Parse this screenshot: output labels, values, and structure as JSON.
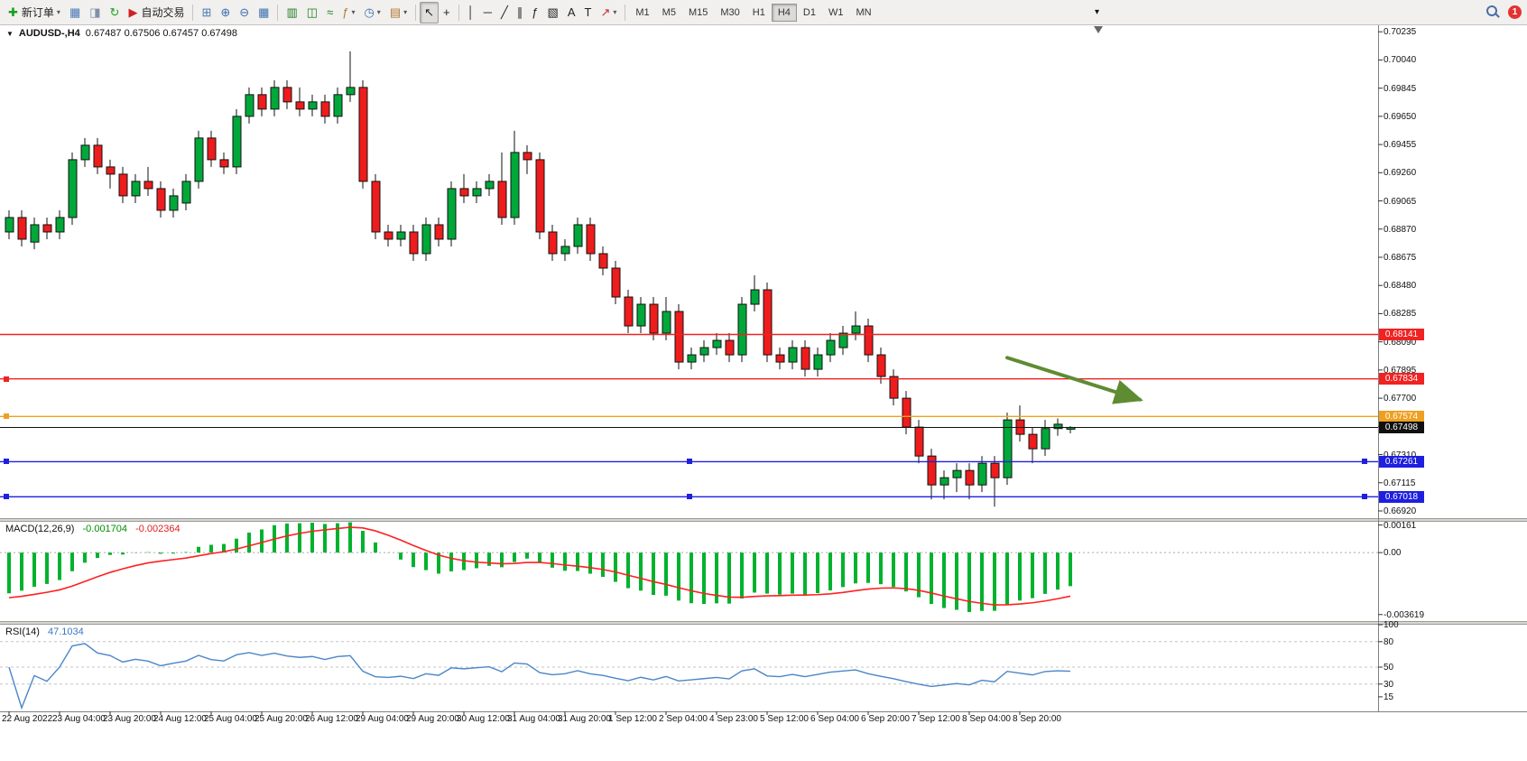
{
  "toolbar": {
    "items": [
      {
        "type": "button",
        "name": "new-order-button",
        "icon": "new-order-icon",
        "glyph": "✚",
        "color": "#16A016",
        "label": "新订单",
        "caret": true
      },
      {
        "type": "button",
        "name": "charts-button",
        "icon": "bar-chart-window-icon",
        "glyph": "▦",
        "color": "#4A78B8"
      },
      {
        "type": "button",
        "name": "profiles-button",
        "icon": "profiles-icon",
        "glyph": "◨",
        "color": "#8090A8"
      },
      {
        "type": "button",
        "name": "refresh-button",
        "icon": "refresh-icon",
        "glyph": "↻",
        "color": "#22A022"
      },
      {
        "type": "button",
        "name": "autotrading-button",
        "icon": "autotrading-icon",
        "glyph": "▶",
        "color": "#CC2222",
        "label": "自动交易"
      },
      {
        "type": "sep"
      },
      {
        "type": "button",
        "name": "new-chart-button",
        "icon": "new-chart-icon",
        "glyph": "⊞",
        "color": "#4A78B8"
      },
      {
        "type": "button",
        "name": "zoom-in-button",
        "icon": "zoom-in-icon",
        "glyph": "⊕",
        "color": "#3A6FB0"
      },
      {
        "type": "button",
        "name": "zoom-out-button",
        "icon": "zoom-out-icon",
        "glyph": "⊖",
        "color": "#3A6FB0"
      },
      {
        "type": "button",
        "name": "data-window-button",
        "icon": "data-window-icon",
        "glyph": "▦",
        "color": "#3A6FB0"
      },
      {
        "type": "sep"
      },
      {
        "type": "button",
        "name": "bar-chart-button",
        "icon": "bar-chart-icon",
        "glyph": "▥",
        "color": "#208020"
      },
      {
        "type": "button",
        "name": "candlestick-chart-button",
        "icon": "candlestick-chart-icon",
        "glyph": "◫",
        "color": "#208020"
      },
      {
        "type": "button",
        "name": "line-chart-button",
        "icon": "line-chart-icon",
        "glyph": "≈",
        "color": "#208020"
      },
      {
        "type": "button",
        "name": "indicators-button",
        "icon": "indicators-icon",
        "glyph": "ƒ",
        "color": "#B07838",
        "caret": true
      },
      {
        "type": "button",
        "name": "periods-button",
        "icon": "periods-icon",
        "glyph": "◷",
        "color": "#3A6FB0",
        "caret": true
      },
      {
        "type": "button",
        "name": "templates-button",
        "icon": "templates-icon",
        "glyph": "▤",
        "color": "#B07838",
        "caret": true
      },
      {
        "type": "sep"
      },
      {
        "type": "button",
        "name": "cursor-button",
        "icon": "cursor-icon",
        "glyph": "↖",
        "color": "#222222",
        "pressed": true
      },
      {
        "type": "button",
        "name": "crosshair-button",
        "icon": "crosshair-icon",
        "glyph": "+",
        "color": "#222222"
      },
      {
        "type": "sep"
      },
      {
        "type": "button",
        "name": "vertical-line-button",
        "icon": "vertical-line-icon",
        "glyph": "│",
        "color": "#222222"
      },
      {
        "type": "button",
        "name": "horizontal-line-button",
        "icon": "horizontal-line-icon",
        "glyph": "─",
        "color": "#222222"
      },
      {
        "type": "button",
        "name": "trendline-button",
        "icon": "trendline-icon",
        "glyph": "╱",
        "color": "#222222"
      },
      {
        "type": "button",
        "name": "channel-button",
        "icon": "channel-icon",
        "glyph": "∥",
        "color": "#222222"
      },
      {
        "type": "button",
        "name": "fibonacci-button",
        "icon": "fibonacci-icon",
        "glyph": "ƒ",
        "color": "#222222"
      },
      {
        "type": "button",
        "name": "shapes-button",
        "icon": "shapes-icon",
        "glyph": "▧",
        "color": "#222222"
      },
      {
        "type": "button",
        "name": "text-button",
        "icon": "text-icon",
        "glyph": "A",
        "color": "#222222"
      },
      {
        "type": "button",
        "name": "text-label-button",
        "icon": "text-label-icon",
        "glyph": "T",
        "color": "#222222"
      },
      {
        "type": "button",
        "name": "arrows-button",
        "icon": "arrow-object-icon",
        "glyph": "↗",
        "color": "#C03030",
        "caret": true
      },
      {
        "type": "sep"
      },
      {
        "type": "tf-group"
      }
    ],
    "timeframes": [
      "M1",
      "M5",
      "M15",
      "M30",
      "H1",
      "H4",
      "D1",
      "W1",
      "MN"
    ],
    "active_timeframe": "H4",
    "overflow_glyph": "▾",
    "right": {
      "notification_count": "1"
    }
  },
  "chart_data": {
    "type": "candlestick",
    "symbol_label": "AUDUSD-,H4",
    "ohlc_label": "0.67487 0.67506 0.67457 0.67498",
    "one_click_glyph": "▼",
    "bull_color": "#00A83A",
    "bear_color": "#EE1C1C",
    "y_range": [
      0.6687,
      0.7028
    ],
    "price_axis_ticks": [
      "0.70235",
      "0.70040",
      "0.69845",
      "0.69650",
      "0.69455",
      "0.69260",
      "0.69065",
      "0.68870",
      "0.68675",
      "0.68480",
      "0.68285",
      "0.68090",
      "0.67895",
      "0.67700",
      "0.67505",
      "0.67310",
      "0.67115",
      "0.66920"
    ],
    "label_every": 4,
    "time_labels": [
      "22 Aug 2022",
      "23 Aug 04:00",
      "23 Aug 20:00",
      "24 Aug 12:00",
      "25 Aug 04:00",
      "25 Aug 20:00",
      "26 Aug 12:00",
      "29 Aug 04:00",
      "29 Aug 20:00",
      "30 Aug 12:00",
      "31 Aug 04:00",
      "31 Aug 20:00",
      "1 Sep 12:00",
      "2 Sep 04:00",
      "4 Sep 23:00",
      "5 Sep 12:00",
      "6 Sep 04:00",
      "6 Sep 20:00",
      "7 Sep 12:00",
      "8 Sep 04:00",
      "8 Sep 20:00"
    ],
    "candles": [
      [
        0.6885,
        0.69,
        0.688,
        0.6895
      ],
      [
        0.6895,
        0.69,
        0.6875,
        0.688
      ],
      [
        0.6878,
        0.6895,
        0.6873,
        0.689
      ],
      [
        0.689,
        0.6895,
        0.688,
        0.6885
      ],
      [
        0.6885,
        0.69,
        0.688,
        0.6895
      ],
      [
        0.6895,
        0.694,
        0.689,
        0.6935
      ],
      [
        0.6935,
        0.695,
        0.693,
        0.6945
      ],
      [
        0.6945,
        0.695,
        0.6925,
        0.693
      ],
      [
        0.693,
        0.6935,
        0.6915,
        0.6925
      ],
      [
        0.6925,
        0.693,
        0.6905,
        0.691
      ],
      [
        0.691,
        0.6925,
        0.6905,
        0.692
      ],
      [
        0.692,
        0.693,
        0.691,
        0.6915
      ],
      [
        0.6915,
        0.692,
        0.6895,
        0.69
      ],
      [
        0.69,
        0.6915,
        0.6895,
        0.691
      ],
      [
        0.6905,
        0.6925,
        0.69,
        0.692
      ],
      [
        0.692,
        0.6955,
        0.6915,
        0.695
      ],
      [
        0.695,
        0.6955,
        0.693,
        0.6935
      ],
      [
        0.6935,
        0.694,
        0.6925,
        0.693
      ],
      [
        0.693,
        0.697,
        0.6925,
        0.6965
      ],
      [
        0.6965,
        0.6985,
        0.696,
        0.698
      ],
      [
        0.698,
        0.6985,
        0.6965,
        0.697
      ],
      [
        0.697,
        0.699,
        0.6965,
        0.6985
      ],
      [
        0.6985,
        0.699,
        0.697,
        0.6975
      ],
      [
        0.6975,
        0.6985,
        0.6965,
        0.697
      ],
      [
        0.697,
        0.698,
        0.6965,
        0.6975
      ],
      [
        0.6975,
        0.698,
        0.696,
        0.6965
      ],
      [
        0.6965,
        0.6985,
        0.696,
        0.698
      ],
      [
        0.698,
        0.701,
        0.6975,
        0.6985
      ],
      [
        0.6985,
        0.699,
        0.6915,
        0.692
      ],
      [
        0.692,
        0.6925,
        0.688,
        0.6885
      ],
      [
        0.6885,
        0.689,
        0.6875,
        0.688
      ],
      [
        0.688,
        0.689,
        0.6875,
        0.6885
      ],
      [
        0.6885,
        0.689,
        0.6865,
        0.687
      ],
      [
        0.687,
        0.6895,
        0.6865,
        0.689
      ],
      [
        0.689,
        0.6895,
        0.6875,
        0.688
      ],
      [
        0.688,
        0.692,
        0.6875,
        0.6915
      ],
      [
        0.6915,
        0.6925,
        0.6905,
        0.691
      ],
      [
        0.691,
        0.692,
        0.6905,
        0.6915
      ],
      [
        0.6915,
        0.6925,
        0.691,
        0.692
      ],
      [
        0.692,
        0.694,
        0.689,
        0.6895
      ],
      [
        0.6895,
        0.6955,
        0.689,
        0.694
      ],
      [
        0.694,
        0.6945,
        0.6925,
        0.6935
      ],
      [
        0.6935,
        0.694,
        0.688,
        0.6885
      ],
      [
        0.6885,
        0.689,
        0.6865,
        0.687
      ],
      [
        0.687,
        0.688,
        0.6865,
        0.6875
      ],
      [
        0.6875,
        0.6895,
        0.687,
        0.689
      ],
      [
        0.689,
        0.6895,
        0.6865,
        0.687
      ],
      [
        0.687,
        0.6875,
        0.6855,
        0.686
      ],
      [
        0.686,
        0.6865,
        0.6835,
        0.684
      ],
      [
        0.684,
        0.6845,
        0.6815,
        0.682
      ],
      [
        0.682,
        0.684,
        0.6815,
        0.6835
      ],
      [
        0.6835,
        0.684,
        0.681,
        0.6815
      ],
      [
        0.6815,
        0.684,
        0.681,
        0.683
      ],
      [
        0.683,
        0.6835,
        0.679,
        0.6795
      ],
      [
        0.6795,
        0.6805,
        0.679,
        0.68
      ],
      [
        0.68,
        0.681,
        0.6795,
        0.6805
      ],
      [
        0.6805,
        0.6815,
        0.68,
        0.681
      ],
      [
        0.681,
        0.6815,
        0.6795,
        0.68
      ],
      [
        0.68,
        0.684,
        0.6795,
        0.6835
      ],
      [
        0.6835,
        0.6855,
        0.683,
        0.6845
      ],
      [
        0.6845,
        0.685,
        0.6795,
        0.68
      ],
      [
        0.68,
        0.6805,
        0.679,
        0.6795
      ],
      [
        0.6795,
        0.681,
        0.679,
        0.6805
      ],
      [
        0.6805,
        0.681,
        0.6785,
        0.679
      ],
      [
        0.679,
        0.6805,
        0.6785,
        0.68
      ],
      [
        0.68,
        0.6815,
        0.6795,
        0.681
      ],
      [
        0.6805,
        0.682,
        0.68,
        0.6815
      ],
      [
        0.6815,
        0.683,
        0.681,
        0.682
      ],
      [
        0.682,
        0.6825,
        0.6795,
        0.68
      ],
      [
        0.68,
        0.6805,
        0.678,
        0.6785
      ],
      [
        0.6785,
        0.679,
        0.6765,
        0.677
      ],
      [
        0.677,
        0.6775,
        0.6745,
        0.675
      ],
      [
        0.675,
        0.6755,
        0.6725,
        0.673
      ],
      [
        0.673,
        0.6735,
        0.67,
        0.671
      ],
      [
        0.671,
        0.672,
        0.67,
        0.6715
      ],
      [
        0.6715,
        0.6725,
        0.6705,
        0.672
      ],
      [
        0.672,
        0.6725,
        0.67,
        0.671
      ],
      [
        0.671,
        0.673,
        0.6705,
        0.6725
      ],
      [
        0.6725,
        0.673,
        0.6695,
        0.6715
      ],
      [
        0.6715,
        0.676,
        0.671,
        0.6755
      ],
      [
        0.6755,
        0.6765,
        0.674,
        0.6745
      ],
      [
        0.6745,
        0.675,
        0.6725,
        0.6735
      ],
      [
        0.6735,
        0.6755,
        0.673,
        0.6749
      ],
      [
        0.6749,
        0.6756,
        0.6744,
        0.6752
      ],
      [
        0.67487,
        0.67506,
        0.67457,
        0.67498
      ]
    ],
    "hlines": [
      {
        "name": "resistance-line-1",
        "price": 0.68141,
        "label": "0.68141",
        "color": "#F02222",
        "handles": []
      },
      {
        "name": "resistance-line-2",
        "price": 0.67834,
        "label": "0.67834",
        "color": "#F02222",
        "handles": [
          "left"
        ]
      },
      {
        "name": "pivot-line",
        "price": 0.67574,
        "label": "0.67574",
        "color": "#EFA021",
        "handles": [
          "left"
        ]
      },
      {
        "name": "current-price-line",
        "price": 0.67498,
        "label": "0.67498",
        "color": "#101010",
        "handles": []
      },
      {
        "name": "support-line-1",
        "price": 0.67261,
        "label": "0.67261",
        "color": "#1F1FE0",
        "handles": [
          "left",
          "center",
          "right"
        ]
      },
      {
        "name": "support-line-2",
        "price": 0.67018,
        "label": "0.67018",
        "color": "#1F1FE0",
        "handles": [
          "left",
          "center",
          "right"
        ]
      }
    ],
    "arrow": {
      "i1": 79,
      "p1": 0.6798,
      "i2": 89.5,
      "p2": 0.6769,
      "color": "#5E8C32"
    },
    "indicators": [
      {
        "name_label": "MACD(12,26,9)",
        "values": [
          "-0.001704",
          "-0.002364"
        ],
        "value_colors": [
          "#009000",
          "#E02020"
        ],
        "axis_ticks": [
          "0.00161",
          "0.00",
          "-0.003619"
        ],
        "tick_values": [
          0.00161,
          0,
          -0.003619
        ],
        "y_range": [
          -0.004,
          0.0018
        ],
        "histogram_color": "#00B22D",
        "signal_color": "#FF2020"
      },
      {
        "name_label": "RSI(14)",
        "values": [
          "47.1034"
        ],
        "value_colors": [
          "#3C78C0"
        ],
        "axis_ticks": [
          "100",
          "80",
          "50",
          "30",
          "15"
        ],
        "tick_values": [
          100,
          80,
          50,
          30,
          15
        ],
        "levels": [
          80,
          50,
          30
        ],
        "y_range": [
          0,
          100
        ],
        "line_color": "#4A86C8"
      }
    ]
  }
}
